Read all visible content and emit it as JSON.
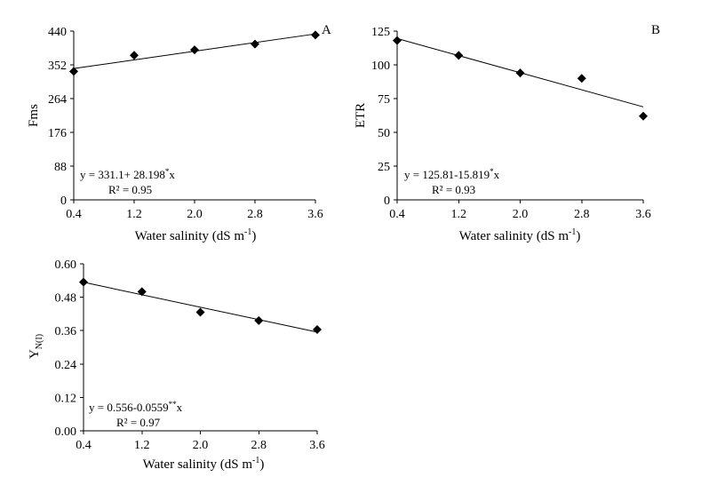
{
  "chart_data": [
    {
      "type": "scatter",
      "panel": "A",
      "xlabel": "Water salinity (dS m",
      "xlabel_sup": "-1",
      "xlabel_end": ")",
      "ylabel": "Fms",
      "ylabel_sub": "",
      "x": [
        0.4,
        1.2,
        2.0,
        2.8,
        3.6
      ],
      "y": [
        335,
        377,
        391,
        406,
        430
      ],
      "xticks": [
        "0.4",
        "1.2",
        "2.0",
        "2.8",
        "3.6"
      ],
      "yticks": [
        "0",
        "88",
        "176",
        "264",
        "352",
        "440"
      ],
      "ylim": [
        0,
        440
      ],
      "xlim": [
        0.4,
        3.6
      ],
      "trendline": {
        "intercept": 331.1,
        "slope": 28.198
      },
      "equation": "y = 331.1+ 28.198",
      "equation_sup": "*",
      "equation_end": "x",
      "r2": "R² = 0.95"
    },
    {
      "type": "scatter",
      "panel": "B",
      "xlabel": "Water salinity (dS m",
      "xlabel_sup": "-1",
      "xlabel_end": ")",
      "ylabel": "ETR",
      "ylabel_sub": "",
      "x": [
        0.4,
        1.2,
        2.0,
        2.8,
        3.6
      ],
      "y": [
        118,
        107,
        94,
        90,
        62
      ],
      "xticks": [
        "0.4",
        "1.2",
        "2.0",
        "2.8",
        "3.6"
      ],
      "yticks": [
        "0",
        "25",
        "50",
        "75",
        "100",
        "125"
      ],
      "ylim": [
        0,
        125
      ],
      "xlim": [
        0.4,
        3.6
      ],
      "trendline": {
        "intercept": 125.81,
        "slope": -15.819
      },
      "equation": "y = 125.81-15.819",
      "equation_sup": "*",
      "equation_end": "x",
      "r2": "R² = 0.93"
    },
    {
      "type": "scatter",
      "panel": "",
      "xlabel": "Water salinity (dS m",
      "xlabel_sup": "-1",
      "xlabel_end": ")",
      "ylabel": "Y",
      "ylabel_sub": "N(I)",
      "x": [
        0.4,
        1.2,
        2.0,
        2.8,
        3.6
      ],
      "y": [
        0.534,
        0.5,
        0.426,
        0.396,
        0.364
      ],
      "xticks": [
        "0.4",
        "1.2",
        "2.0",
        "2.8",
        "3.6"
      ],
      "yticks": [
        "0.00",
        "0.12",
        "0.24",
        "0.36",
        "0.48",
        "0.60"
      ],
      "ylim": [
        0,
        0.6
      ],
      "xlim": [
        0.4,
        3.6
      ],
      "trendline": {
        "intercept": 0.556,
        "slope": -0.0559
      },
      "equation": "y = 0.556-0.0559",
      "equation_sup": "**",
      "equation_end": "x",
      "r2": "R² = 0.97"
    }
  ]
}
